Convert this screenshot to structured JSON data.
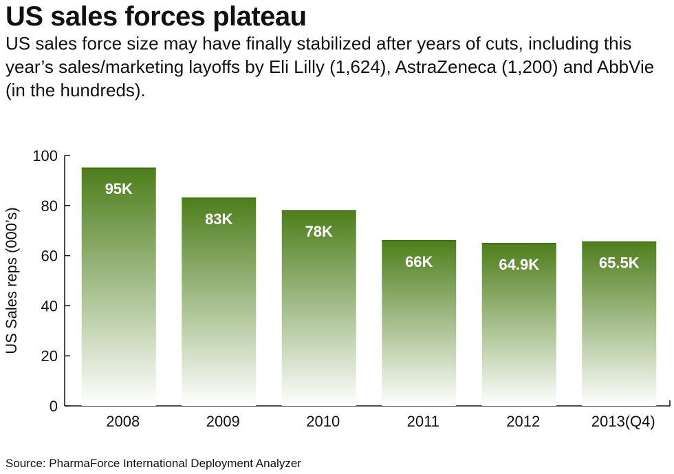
{
  "header": {
    "title": "US sales forces plateau",
    "subtitle": "US sales force size may have finally stabilized after years of cuts, including this year’s sales/marketing layoffs by Eli Lilly (1,624), AstraZeneca (1,200) and AbbVie (in the hundreds)."
  },
  "footer": {
    "source": "Source: PharmaForce International Deployment Analyzer"
  },
  "chart_data": {
    "type": "bar",
    "categories": [
      "2008",
      "2009",
      "2010",
      "2011",
      "2012",
      "2013(Q4)"
    ],
    "values": [
      95,
      83,
      78,
      66,
      64.9,
      65.5
    ],
    "data_labels": [
      "95K",
      "83K",
      "78K",
      "66K",
      "64.9K",
      "65.5K"
    ],
    "ylabel": "US Sales reps (000’s)",
    "ylim": [
      0,
      100
    ],
    "yticks": [
      "0",
      "20",
      "40",
      "60",
      "80",
      "100"
    ],
    "grid": false,
    "colors": {
      "bar_top": "#4d7e1b",
      "bar_bottom": "#ffffff",
      "label": "#ffffff",
      "axis": "#111111"
    }
  }
}
